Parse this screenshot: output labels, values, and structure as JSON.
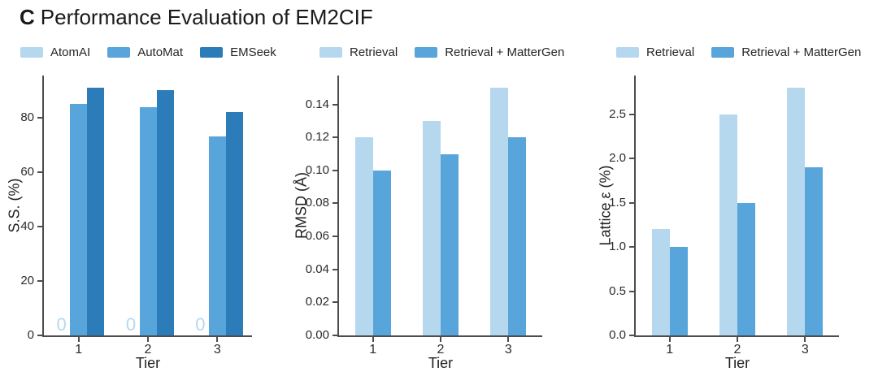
{
  "title": {
    "prefix": "C",
    "text": "Performance Evaluation of EM2CIF"
  },
  "colors": {
    "light_blue": "#b5d8ee",
    "medium_blue": "#57a5da",
    "dark_blue": "#2c7cba",
    "text_dark": "#1a1a1a",
    "tick_text": "#2b2b2b",
    "axis_line": "#4d4d4d"
  },
  "chart_data": [
    {
      "type": "bar",
      "xlabel": "Tier",
      "ylabel": "S.S. (%)",
      "categories": [
        "1",
        "2",
        "3"
      ],
      "series": [
        {
          "name": "AtomAI",
          "color_key": "light_blue",
          "values": [
            0,
            0,
            0
          ],
          "bar_labels": [
            "0",
            "0",
            "0"
          ]
        },
        {
          "name": "AutoMat",
          "color_key": "medium_blue",
          "values": [
            85,
            84,
            73
          ]
        },
        {
          "name": "EMSeek",
          "color_key": "dark_blue",
          "values": [
            91,
            90,
            82
          ]
        }
      ],
      "ylim": [
        0,
        95.5
      ],
      "yticks": [
        0,
        20,
        40,
        60,
        80
      ],
      "ytick_labels": [
        "0",
        "20",
        "40",
        "60",
        "80"
      ],
      "grid": false,
      "legend_position": "above"
    },
    {
      "type": "bar",
      "xlabel": "Tier",
      "ylabel": "RMSD (Å)",
      "categories": [
        "1",
        "2",
        "3"
      ],
      "series": [
        {
          "name": "Retrieval",
          "color_key": "light_blue",
          "values": [
            0.12,
            0.13,
            0.15
          ]
        },
        {
          "name": "Retrieval + MatterGen",
          "color_key": "medium_blue",
          "values": [
            0.1,
            0.11,
            0.12
          ]
        }
      ],
      "ylim": [
        0,
        0.1575
      ],
      "yticks": [
        0,
        0.02,
        0.04,
        0.06,
        0.08,
        0.1,
        0.12,
        0.14
      ],
      "ytick_labels": [
        "0.00",
        "0.02",
        "0.04",
        "0.06",
        "0.08",
        "0.10",
        "0.12",
        "0.14"
      ],
      "grid": false,
      "legend_position": "above"
    },
    {
      "type": "bar",
      "xlabel": "Tier",
      "ylabel": "Lattice ε (%)",
      "categories": [
        "1",
        "2",
        "3"
      ],
      "series": [
        {
          "name": "Retrieval",
          "color_key": "light_blue",
          "values": [
            1.2,
            2.5,
            2.8
          ]
        },
        {
          "name": "Retrieval + MatterGen",
          "color_key": "medium_blue",
          "values": [
            1.0,
            1.5,
            1.9
          ]
        }
      ],
      "ylim": [
        0,
        2.94
      ],
      "yticks": [
        0,
        0.5,
        1.0,
        1.5,
        2.0,
        2.5
      ],
      "ytick_labels": [
        "0.0",
        "0.5",
        "1.0",
        "1.5",
        "2.0",
        "2.5"
      ],
      "grid": false,
      "legend_position": "above"
    }
  ]
}
